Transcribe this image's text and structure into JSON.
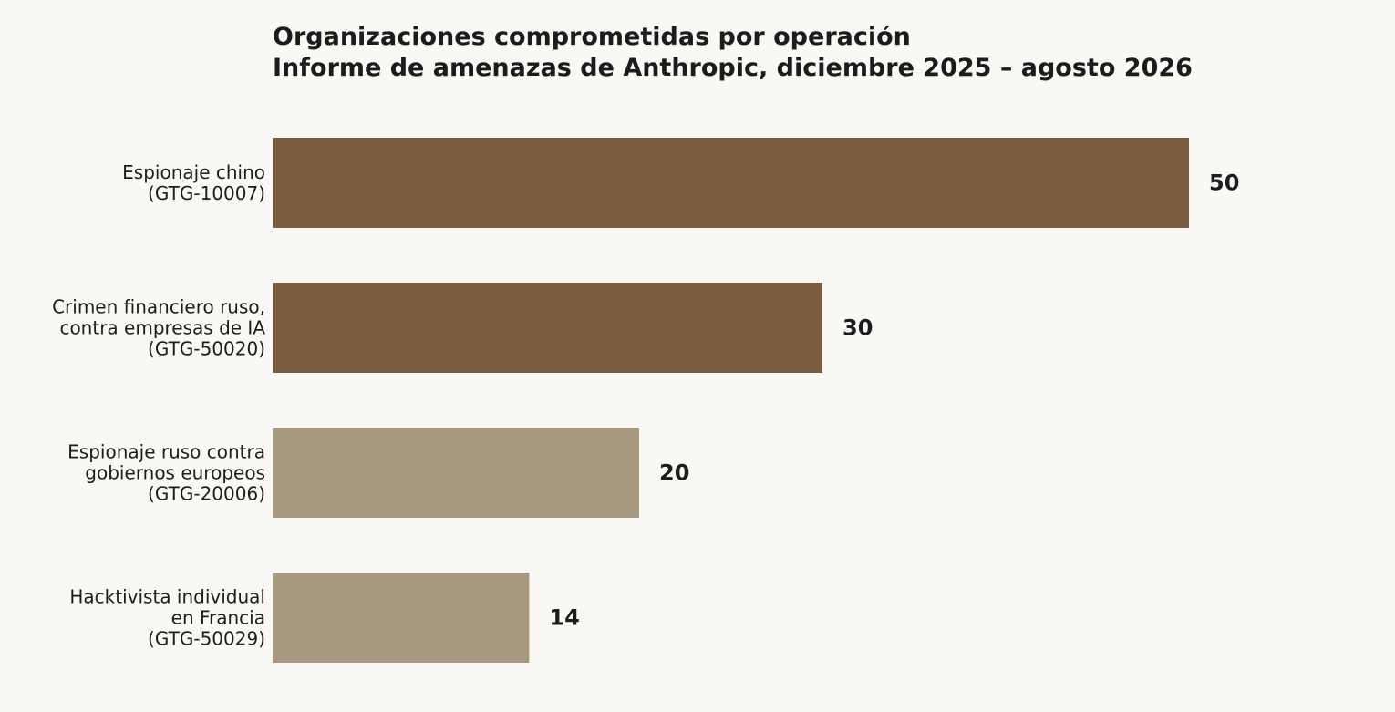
{
  "chart_data": {
    "type": "bar",
    "orientation": "horizontal",
    "title_lines": [
      "Organizaciones comprometidas por operación",
      "Informe de amenazas de Anthropic, diciembre 2025 – agosto 2026"
    ],
    "categories": [
      [
        "Espionaje chino",
        "(GTG-10007)"
      ],
      [
        "Crimen financiero ruso,",
        "contra empresas de IA",
        "(GTG-50020)"
      ],
      [
        "Espionaje ruso contra",
        "gobiernos europeos",
        "(GTG-20006)"
      ],
      [
        "Hacktivista individual",
        "en Francia",
        "(GTG-50029)"
      ]
    ],
    "values": [
      50,
      30,
      20,
      14
    ],
    "value_labels": [
      "50",
      "30",
      "20",
      "14"
    ],
    "bar_colors": [
      "#7b5e40",
      "#7b5e40",
      "#a8987f",
      "#a8987f"
    ],
    "xlim": [
      0,
      50
    ],
    "grid": false,
    "axes_visible": false
  },
  "colors": {
    "background": "#f9f8f5",
    "text": "#1c1c1c"
  }
}
